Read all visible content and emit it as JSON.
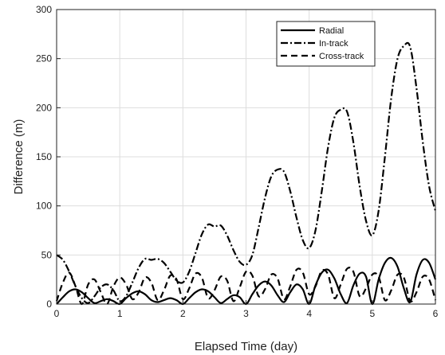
{
  "chart_data": {
    "type": "line",
    "xlabel": "Elapsed Time (day)",
    "ylabel": "Difference (m)",
    "xlim": [
      0,
      6
    ],
    "ylim": [
      0,
      300
    ],
    "xticks": [
      0,
      1,
      2,
      3,
      4,
      5,
      6
    ],
    "yticks": [
      0,
      50,
      100,
      150,
      200,
      250,
      300
    ],
    "grid": true,
    "legend_position": "top-right",
    "series": [
      {
        "name": "Radial",
        "style": "solid",
        "color": "#000000",
        "x": [
          0,
          0.1,
          0.2,
          0.3,
          0.4,
          0.5,
          0.6,
          0.7,
          0.8,
          0.9,
          1.0,
          1.1,
          1.2,
          1.3,
          1.4,
          1.5,
          1.6,
          1.7,
          1.8,
          1.9,
          2.0,
          2.1,
          2.2,
          2.3,
          2.4,
          2.5,
          2.6,
          2.7,
          2.8,
          2.9,
          3.0,
          3.1,
          3.2,
          3.3,
          3.4,
          3.5,
          3.6,
          3.7,
          3.8,
          3.9,
          4.0,
          4.1,
          4.2,
          4.3,
          4.4,
          4.5,
          4.6,
          4.7,
          4.8,
          4.9,
          5.0,
          5.1,
          5.2,
          5.3,
          5.4,
          5.5,
          5.6,
          5.7,
          5.8,
          5.9,
          6.0
        ],
        "values": [
          0,
          7,
          13,
          15,
          12,
          6,
          1,
          3,
          5,
          3,
          0,
          6,
          11,
          13,
          10,
          4,
          2,
          4,
          6,
          4,
          0,
          6,
          12,
          15,
          13,
          7,
          1,
          5,
          9,
          7,
          0,
          10,
          19,
          23,
          19,
          9,
          2,
          12,
          20,
          15,
          0,
          19,
          32,
          35,
          26,
          10,
          1,
          19,
          31,
          28,
          0,
          25,
          42,
          47,
          38,
          16,
          2,
          30,
          45,
          42,
          25
        ]
      },
      {
        "name": "In-track",
        "style": "dashdot",
        "color": "#000000",
        "x": [
          0,
          0.1,
          0.2,
          0.3,
          0.4,
          0.5,
          0.6,
          0.7,
          0.8,
          0.9,
          1.0,
          1.1,
          1.2,
          1.3,
          1.4,
          1.5,
          1.6,
          1.7,
          1.8,
          1.9,
          2.0,
          2.1,
          2.2,
          2.3,
          2.4,
          2.5,
          2.6,
          2.7,
          2.8,
          2.9,
          3.0,
          3.1,
          3.2,
          3.3,
          3.4,
          3.5,
          3.6,
          3.7,
          3.8,
          3.9,
          4.0,
          4.1,
          4.2,
          4.3,
          4.4,
          4.5,
          4.6,
          4.7,
          4.8,
          4.9,
          5.0,
          5.1,
          5.2,
          5.3,
          5.4,
          5.5,
          5.6,
          5.7,
          5.8,
          5.9,
          6.0
        ],
        "values": [
          50,
          45,
          33,
          18,
          6,
          1,
          8,
          17,
          20,
          14,
          3,
          8,
          22,
          37,
          46,
          45,
          46,
          42,
          33,
          24,
          22,
          33,
          52,
          71,
          81,
          79,
          80,
          70,
          55,
          43,
          40,
          50,
          78,
          108,
          130,
          137,
          135,
          115,
          88,
          65,
          57,
          75,
          115,
          160,
          190,
          198,
          196,
          165,
          120,
          85,
          70,
          95,
          150,
          210,
          250,
          263,
          262,
          220,
          165,
          120,
          95
        ]
      },
      {
        "name": "Cross-track",
        "style": "dashed",
        "color": "#000000",
        "x": [
          0,
          0.1,
          0.2,
          0.3,
          0.4,
          0.5,
          0.6,
          0.7,
          0.8,
          0.9,
          1.0,
          1.1,
          1.2,
          1.3,
          1.4,
          1.5,
          1.6,
          1.7,
          1.8,
          1.9,
          2.0,
          2.1,
          2.2,
          2.3,
          2.4,
          2.5,
          2.6,
          2.7,
          2.8,
          2.9,
          3.0,
          3.1,
          3.2,
          3.3,
          3.4,
          3.5,
          3.6,
          3.7,
          3.8,
          3.9,
          4.0,
          4.1,
          4.2,
          4.3,
          4.4,
          4.5,
          4.6,
          4.7,
          4.8,
          4.9,
          5.0,
          5.1,
          5.2,
          5.3,
          5.4,
          5.5,
          5.6,
          5.7,
          5.8,
          5.9,
          6.0
        ],
        "values": [
          3,
          22,
          32,
          18,
          0,
          20,
          25,
          12,
          0,
          18,
          27,
          20,
          5,
          12,
          27,
          22,
          4,
          14,
          29,
          25,
          5,
          16,
          31,
          27,
          6,
          14,
          28,
          24,
          3,
          17,
          33,
          29,
          8,
          15,
          30,
          26,
          5,
          18,
          35,
          32,
          10,
          18,
          34,
          30,
          6,
          20,
          36,
          33,
          8,
          16,
          30,
          28,
          4,
          14,
          30,
          27,
          3,
          12,
          28,
          25,
          4
        ]
      }
    ]
  }
}
